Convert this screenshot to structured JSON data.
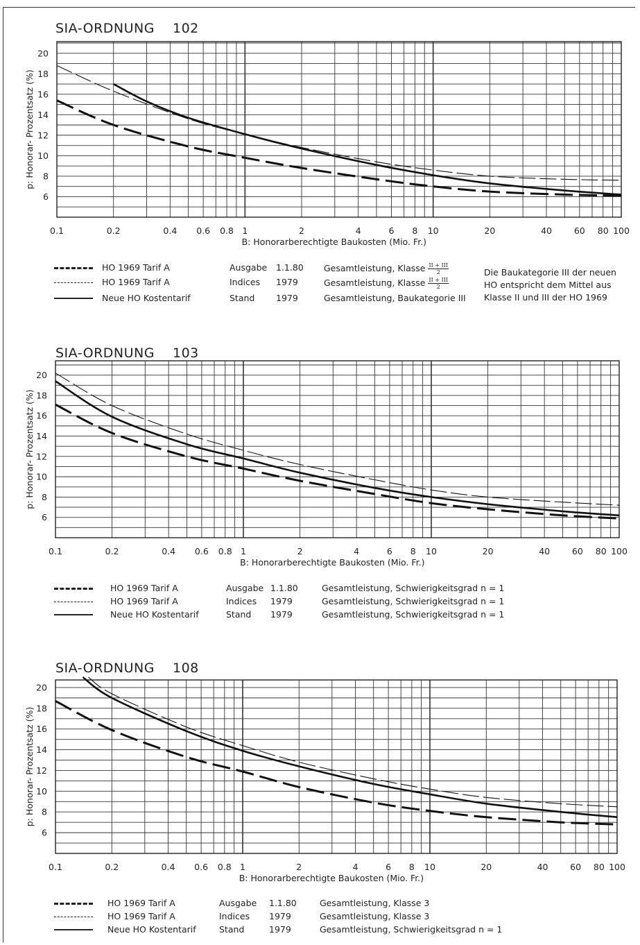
{
  "legend_line_styles": [
    "dash-thick",
    "dash-thin",
    "solid"
  ],
  "panels": [
    {
      "title": "SIA-ORDNUNG",
      "number": "102",
      "ylabel": "p:   Honorar- Prozentsatz (%)",
      "xlabel": "B:   Honorarberechtigte Baukosten (Mio. Fr.)",
      "legend": [
        {
          "c1": "HO  1969  Tarif  A",
          "c2": "Ausgabe",
          "c3": "1.1.80",
          "c4": "Gesamtleistung, Klasse",
          "frac_num": "II + III",
          "frac_den": "2"
        },
        {
          "c1": "HO  1969  Tarif  A",
          "c2": "Indices",
          "c3": "1979",
          "c4": "Gesamtleistung, Klasse",
          "frac_num": "II + III",
          "frac_den": "2"
        },
        {
          "c1": "Neue  HO  Kostentarif",
          "c2": "Stand",
          "c3": "1979",
          "c4": "Gesamtleistung, Baukategorie III",
          "frac_num": "",
          "frac_den": ""
        }
      ],
      "note": [
        "Die Baukategorie III der neuen",
        "HO entspricht dem Mittel aus",
        "Klasse II und III der HO 1969"
      ]
    },
    {
      "title": "SIA-ORDNUNG",
      "number": "103",
      "ylabel": "p:   Honorar- Prozentsatz (%)",
      "xlabel": "B:   Honorarberechtigte Baukosten (Mio. Fr.)",
      "legend": [
        {
          "c1": "HO  1969  Tarif  A",
          "c2": "Ausgabe",
          "c3": "1.1.80",
          "c4": "Gesamtleistung, Schwierigkeitsgrad   n = 1",
          "frac_num": "",
          "frac_den": ""
        },
        {
          "c1": "HO  1969  Tarif  A",
          "c2": "Indices",
          "c3": "1979",
          "c4": "Gesamtleistung, Schwierigkeitsgrad   n = 1",
          "frac_num": "",
          "frac_den": ""
        },
        {
          "c1": "Neue  HO  Kostentarif",
          "c2": "Stand",
          "c3": "1979",
          "c4": "Gesamtleistung, Schwierigkeitsgrad   n = 1",
          "frac_num": "",
          "frac_den": ""
        }
      ],
      "note": []
    },
    {
      "title": "SIA-ORDNUNG",
      "number": "108",
      "ylabel": "p:   Honorar- Prozentsatz (%)",
      "xlabel": "B:   Honorarberechtigte Baukosten (Mio. Fr.)",
      "legend": [
        {
          "c1": "HO  1969  Tarif  A",
          "c2": "Ausgabe",
          "c3": "1.1.80",
          "c4": "Gesamtleistung, Klasse 3",
          "frac_num": "",
          "frac_den": ""
        },
        {
          "c1": "HO  1969  Tarif  A",
          "c2": "Indices",
          "c3": "1979",
          "c4": "Gesamtleistung, Klasse 3",
          "frac_num": "",
          "frac_den": ""
        },
        {
          "c1": "Neue  HO  Kostentarif",
          "c2": "Stand",
          "c3": "1979",
          "c4": "Gesamtleistung, Schwierigkeitsgrad   n = 1",
          "frac_num": "",
          "frac_den": ""
        }
      ],
      "note": []
    }
  ],
  "chart_data": [
    {
      "type": "line",
      "title": "SIA-ORDNUNG 102",
      "xlabel": "B:   Honorarberechtigte Baukosten (Mio. Fr.)",
      "ylabel": "p:   Honorar- Prozentsatz (%)",
      "xscale": "log",
      "xlim": [
        0.1,
        100
      ],
      "ylim": [
        4,
        21
      ],
      "grid": true,
      "x_ticks": [
        "0.1",
        "0.2",
        "0.4",
        "0.6",
        "0.8",
        "1",
        "2",
        "4",
        "6",
        "8",
        "10",
        "20",
        "40",
        "60",
        "80",
        "100"
      ],
      "y_ticks": [
        "6",
        "8",
        "10",
        "12",
        "14",
        "16",
        "18",
        "20"
      ],
      "series": [
        {
          "name": "HO 1969 Tarif A Ausgabe 1.1.80",
          "style": "dash-thick",
          "x": [
            0.1,
            0.2,
            0.5,
            1,
            2,
            5,
            10,
            20,
            50,
            100
          ],
          "y": [
            15.4,
            13.0,
            10.9,
            9.8,
            8.8,
            7.7,
            7.0,
            6.5,
            6.2,
            6.1
          ]
        },
        {
          "name": "HO 1969 Tarif A Indices 1979",
          "style": "dash-thin",
          "x": [
            0.1,
            0.2,
            0.5,
            1,
            2,
            5,
            10,
            20,
            50,
            100
          ],
          "y": [
            18.8,
            16.3,
            13.6,
            12.1,
            10.8,
            9.4,
            8.6,
            8.0,
            7.7,
            7.6
          ]
        },
        {
          "name": "Neue HO Kostentarif Stand 1979",
          "style": "solid",
          "x": [
            0.2,
            0.3,
            0.5,
            1,
            2,
            5,
            10,
            20,
            50,
            100
          ],
          "y": [
            17.0,
            15.3,
            13.7,
            12.1,
            10.7,
            9.1,
            8.1,
            7.3,
            6.6,
            6.2
          ]
        }
      ]
    },
    {
      "type": "line",
      "title": "SIA-ORDNUNG 103",
      "xlabel": "B:   Honorarberechtigte Baukosten (Mio. Fr.)",
      "ylabel": "p:   Honorar- Prozentsatz (%)",
      "xscale": "log",
      "xlim": [
        0.1,
        100
      ],
      "ylim": [
        4,
        21
      ],
      "grid": true,
      "x_ticks": [
        "0.1",
        "0.2",
        "0.4",
        "0.6",
        "0.8",
        "1",
        "2",
        "4",
        "6",
        "8",
        "10",
        "20",
        "40",
        "60",
        "80",
        "100"
      ],
      "y_ticks": [
        "6",
        "8",
        "10",
        "12",
        "14",
        "16",
        "18",
        "20"
      ],
      "series": [
        {
          "name": "HO 1969 Tarif A Ausgabe 1.1.80",
          "style": "dash-thick",
          "x": [
            0.1,
            0.2,
            0.5,
            1,
            2,
            5,
            10,
            20,
            50,
            100
          ],
          "y": [
            17.1,
            14.3,
            12.0,
            10.8,
            9.6,
            8.3,
            7.4,
            6.8,
            6.2,
            5.9
          ]
        },
        {
          "name": "HO 1969 Tarif A Indices 1979",
          "style": "dash-thin",
          "x": [
            0.1,
            0.2,
            0.5,
            1,
            2,
            5,
            10,
            20,
            50,
            100
          ],
          "y": [
            20.2,
            17.0,
            14.2,
            12.6,
            11.2,
            9.7,
            8.7,
            8.0,
            7.5,
            7.2
          ]
        },
        {
          "name": "Neue HO Kostentarif Stand 1979",
          "style": "solid",
          "x": [
            0.1,
            0.2,
            0.5,
            1,
            2,
            5,
            10,
            20,
            50,
            100
          ],
          "y": [
            19.4,
            15.9,
            13.2,
            11.8,
            10.4,
            8.9,
            8.0,
            7.3,
            6.6,
            6.2
          ]
        }
      ]
    },
    {
      "type": "line",
      "title": "SIA-ORDNUNG 108",
      "xlabel": "B:   Honorarberechtigte Baukosten (Mio. Fr.)",
      "ylabel": "p:   Honorar- Prozentsatz (%)",
      "xscale": "log",
      "xlim": [
        0.1,
        100
      ],
      "ylim": [
        4,
        21
      ],
      "grid": true,
      "x_ticks": [
        "0.1",
        "0.2",
        "0.4",
        "0.6",
        "0.8",
        "1",
        "2",
        "4",
        "6",
        "8",
        "10",
        "20",
        "40",
        "60",
        "80",
        "100"
      ],
      "y_ticks": [
        "6",
        "8",
        "10",
        "12",
        "14",
        "16",
        "18",
        "20"
      ],
      "series": [
        {
          "name": "HO 1969 Tarif A Ausgabe 1.1.80",
          "style": "dash-thick",
          "x": [
            0.1,
            0.2,
            0.5,
            1,
            2,
            5,
            10,
            20,
            50,
            100
          ],
          "y": [
            18.7,
            15.9,
            13.3,
            11.9,
            10.4,
            8.9,
            8.1,
            7.5,
            7.0,
            6.8
          ]
        },
        {
          "name": "HO 1969 Tarif A Indices 1979",
          "style": "dash-thin",
          "x": [
            0.15,
            0.2,
            0.5,
            1,
            2,
            5,
            10,
            20,
            50,
            100
          ],
          "y": [
            21.0,
            19.4,
            16.2,
            14.4,
            12.8,
            11.2,
            10.2,
            9.4,
            8.8,
            8.5
          ]
        },
        {
          "name": "Neue HO Kostentarif Stand 1979",
          "style": "solid",
          "x": [
            0.14,
            0.2,
            0.5,
            1,
            2,
            5,
            10,
            20,
            50,
            100
          ],
          "y": [
            21.0,
            19.0,
            15.8,
            13.9,
            12.4,
            10.7,
            9.7,
            8.8,
            8.0,
            7.5
          ]
        }
      ]
    }
  ]
}
